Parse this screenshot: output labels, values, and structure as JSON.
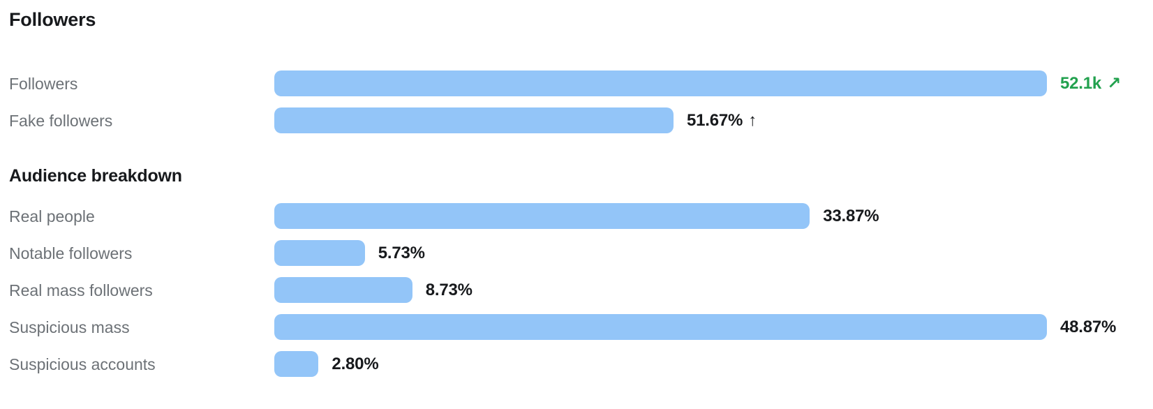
{
  "title": "Followers",
  "colors": {
    "bar": "#93c5f8",
    "positive_value": "#22a14e",
    "label": "#6c7176",
    "value": "#17191c"
  },
  "followers_section": {
    "rows": [
      {
        "label": "Followers",
        "value": "52.1k",
        "trend": "↗",
        "emphasis": "positive",
        "bar_ratio": 1.0
      },
      {
        "label": "Fake followers",
        "value": "51.67%",
        "trend": "↑",
        "emphasis": "normal",
        "bar_ratio": 0.5167
      }
    ]
  },
  "audience_section": {
    "heading": "Audience breakdown",
    "rows": [
      {
        "label": "Real people",
        "value": "33.87%",
        "trend": "",
        "emphasis": "normal",
        "bar_ratio": 0.6931
      },
      {
        "label": "Notable followers",
        "value": "5.73%",
        "trend": "",
        "emphasis": "normal",
        "bar_ratio": 0.1172
      },
      {
        "label": "Real mass followers",
        "value": "8.73%",
        "trend": "",
        "emphasis": "normal",
        "bar_ratio": 0.1786
      },
      {
        "label": "Suspicious mass",
        "value": "48.87%",
        "trend": "",
        "emphasis": "normal",
        "bar_ratio": 1.0
      },
      {
        "label": "Suspicious accounts",
        "value": "2.80%",
        "trend": "",
        "emphasis": "normal",
        "bar_ratio": 0.0573
      }
    ]
  },
  "chart_data": {
    "type": "bar",
    "orientation": "horizontal",
    "grid": false,
    "legend": false,
    "normalization": "each group's bars scaled relative to that group's maximum",
    "groups": [
      {
        "title": "Followers",
        "categories": [
          "Followers",
          "Fake followers"
        ],
        "values": [
          52100,
          51.67
        ],
        "value_labels": [
          "52.1k ↗",
          "51.67% ↑"
        ],
        "note": "Followers shown as absolute count with positive (green) trend arrow; fake followers as percent with up arrow"
      },
      {
        "title": "Audience breakdown",
        "categories": [
          "Real people",
          "Notable followers",
          "Real mass followers",
          "Suspicious mass",
          "Suspicious accounts"
        ],
        "values": [
          33.87,
          5.73,
          8.73,
          48.87,
          2.8
        ],
        "value_labels": [
          "33.87%",
          "5.73%",
          "8.73%",
          "48.87%",
          "2.80%"
        ],
        "unit": "percent"
      }
    ]
  }
}
